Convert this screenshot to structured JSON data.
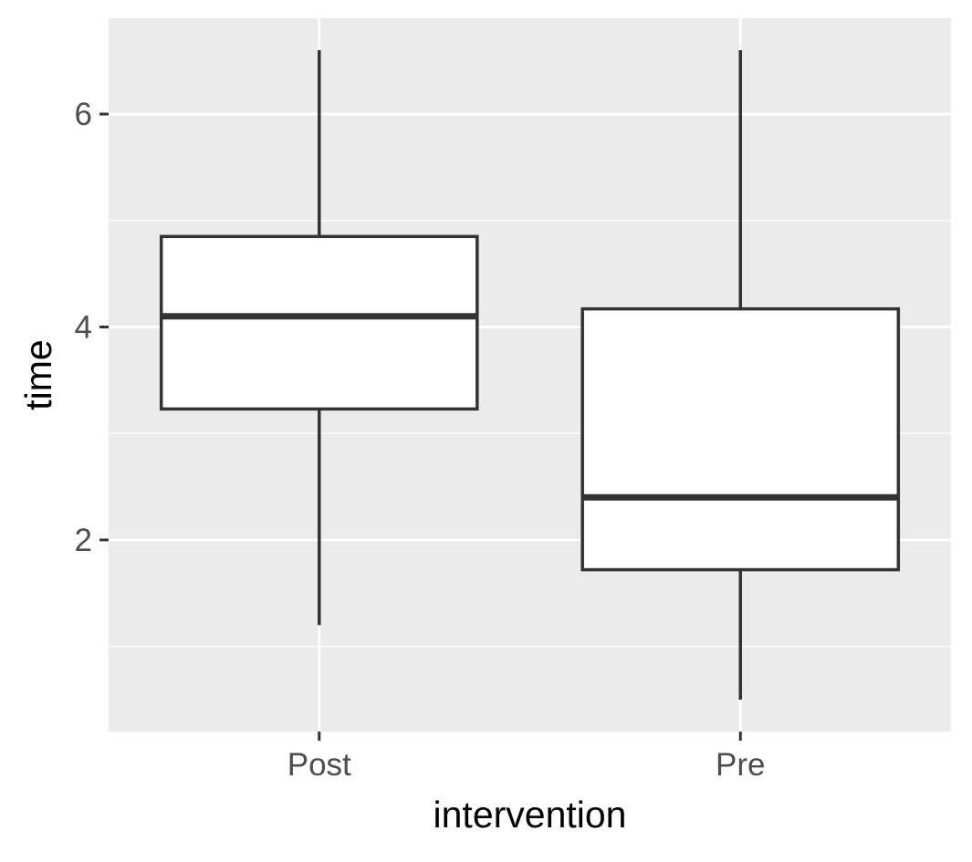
{
  "chart_data": {
    "type": "boxplot",
    "title": "",
    "xlabel": "intervention",
    "ylabel": "time",
    "categories": [
      "Post",
      "Pre"
    ],
    "boxes": [
      {
        "category": "Post",
        "whisker_low": 1.2,
        "q1": 3.23,
        "median": 4.1,
        "q3": 4.85,
        "whisker_high": 6.6
      },
      {
        "category": "Pre",
        "whisker_low": 0.5,
        "q1": 1.72,
        "median": 2.4,
        "q3": 4.17,
        "whisker_high": 6.6
      }
    ],
    "ylim": [
      0.2,
      6.9
    ],
    "yticks": [
      2,
      4,
      6
    ],
    "ytick_labels": [
      "2",
      "4",
      "6"
    ],
    "y_minor_ticks": [
      1,
      3,
      5
    ],
    "grid": true,
    "legend": "none",
    "colors": {
      "panel_background": "#ebebeb",
      "grid_line": "#ffffff",
      "box_fill": "#ffffff",
      "box_stroke": "#333333",
      "tick_mark": "#333333",
      "tick_label": "#4d4d4d",
      "axis_title": "#000000"
    }
  }
}
